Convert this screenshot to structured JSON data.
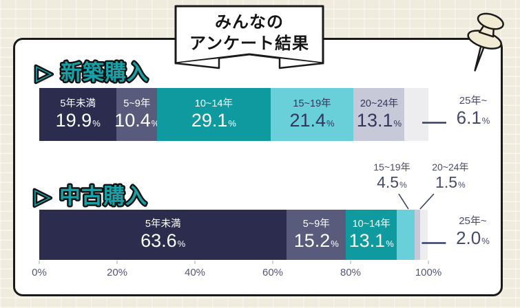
{
  "ui": {
    "banner": {
      "line1": "みんなの",
      "line2": "アンケート結果"
    },
    "heading_marker": "▷",
    "percent_sign": "%"
  },
  "palette": {
    "segment_colors": [
      "#2b2c4e",
      "#595b7d",
      "#0f9aa0",
      "#69cfd8",
      "#c7c9d9",
      "#ededef"
    ],
    "segment_text_colors": [
      "#ffffff",
      "#ffffff",
      "#ffffff",
      "#33355c",
      "#33355c",
      "#33355c"
    ],
    "heading_fill": "#14a1a8",
    "heading_outline": "#121212",
    "annotation_text": "#474a70",
    "axis_text": "#54557a",
    "connector": "#323f68",
    "tick_mark": "#b3b3bf",
    "card_background": "#ffffff",
    "card_border": "#1a1a1a",
    "page_background": "#efecdd",
    "pin_fill": "#f1ebd4"
  },
  "chart_data": [
    {
      "type": "bar",
      "stacked": true,
      "orientation": "horizontal",
      "title": "新築購入",
      "unit": "%",
      "xlim": [
        0,
        100
      ],
      "x_ticks": [
        "0%",
        "20%",
        "40%",
        "60%",
        "80%",
        "100%"
      ],
      "grid": false,
      "legend": "none",
      "categories": [
        "5年未満",
        "5~9年",
        "10~14年",
        "15~19年",
        "20~24年",
        "25年~"
      ],
      "values": [
        19.9,
        10.4,
        29.1,
        21.4,
        13.1,
        6.1
      ],
      "label_placement": [
        "inside",
        "inside",
        "inside",
        "inside",
        "inside",
        "outside-right"
      ],
      "callout_dx": [
        0,
        0,
        0,
        0,
        0,
        0
      ]
    },
    {
      "type": "bar",
      "stacked": true,
      "orientation": "horizontal",
      "title": "中古購入",
      "unit": "%",
      "xlim": [
        0,
        100
      ],
      "x_ticks": [
        "0%",
        "20%",
        "40%",
        "60%",
        "80%",
        "100%"
      ],
      "grid": false,
      "legend": "none",
      "categories": [
        "5年未満",
        "5~9年",
        "10~14年",
        "15~19年",
        "20~24年",
        "25年~"
      ],
      "values": [
        63.6,
        15.2,
        13.1,
        4.5,
        1.5,
        2.0
      ],
      "label_placement": [
        "inside",
        "inside",
        "inside",
        "callout-above",
        "callout-above",
        "outside-right"
      ],
      "callout_dx": [
        0,
        0,
        0,
        -20,
        48,
        0
      ]
    }
  ]
}
